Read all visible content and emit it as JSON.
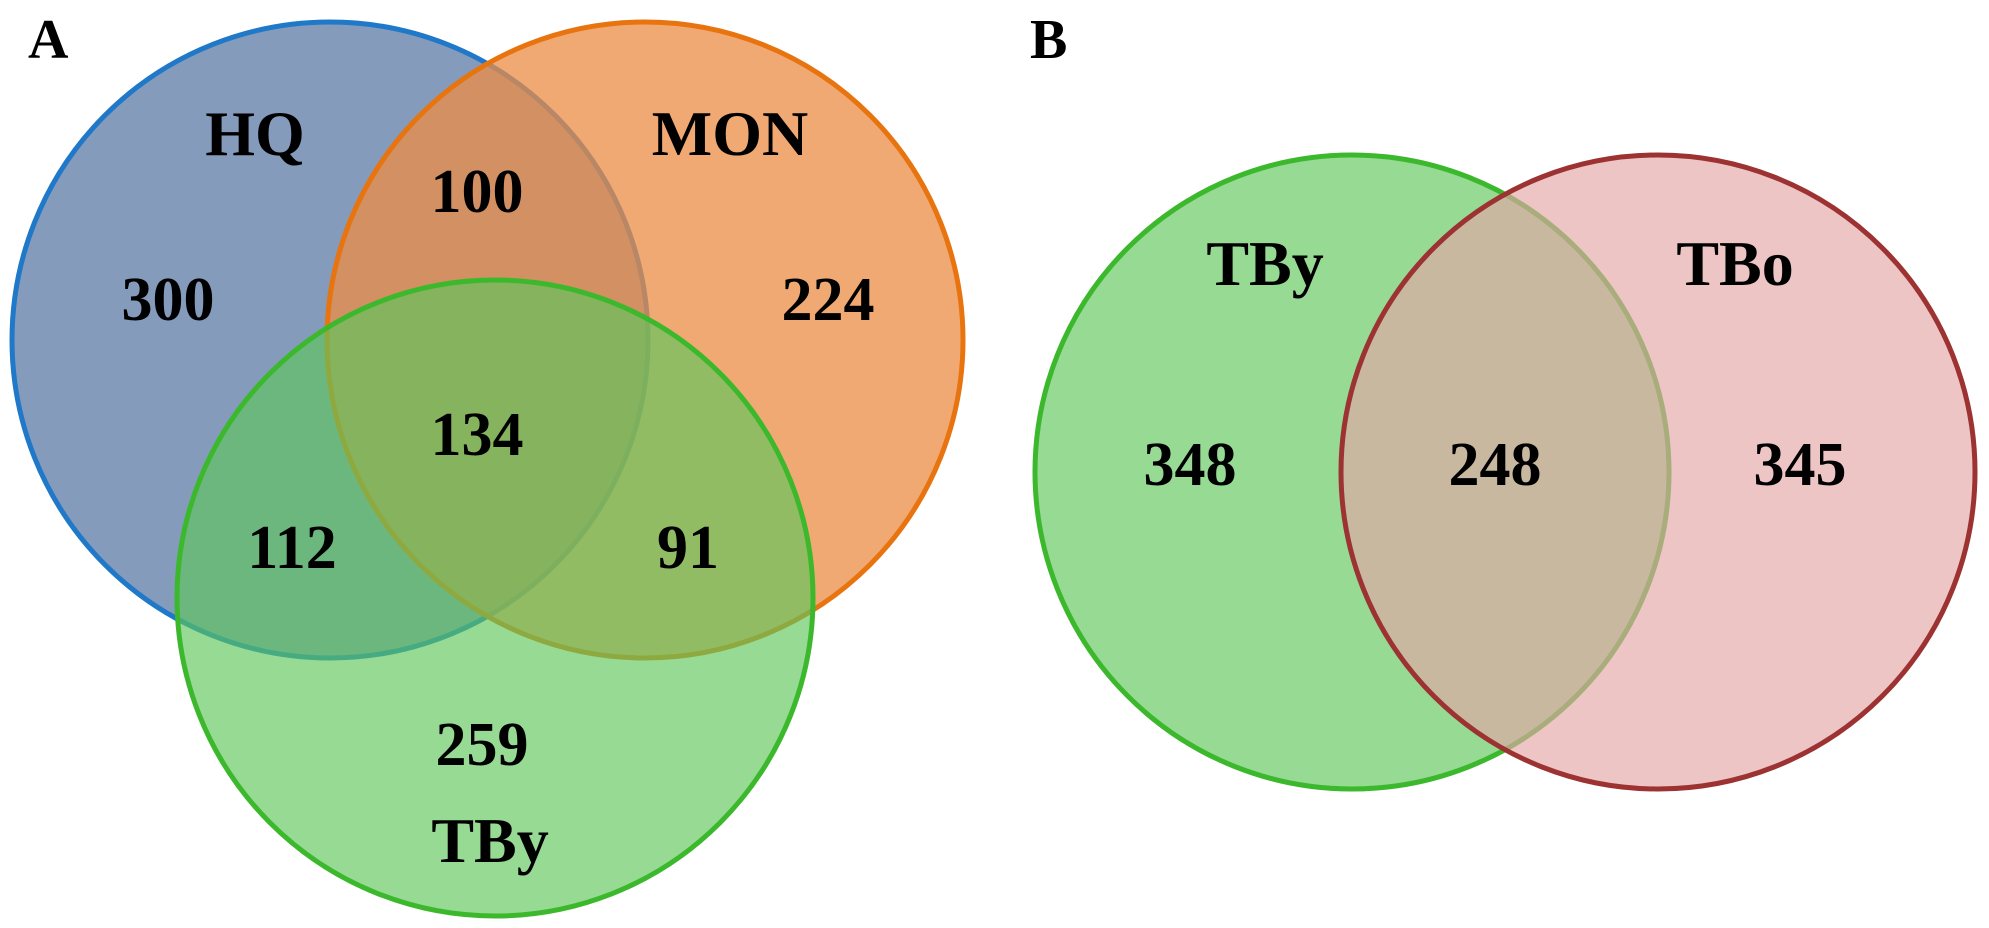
{
  "colors": {
    "hq_fill": "#5b7aa6",
    "hq_stroke": "#1f78c8",
    "mon_fill": "#ec8c45",
    "mon_stroke": "#e8740f",
    "tby_fill": "#5ec65a",
    "tby_stroke": "#3cb82c",
    "tbo_fill": "#e4a6a6",
    "tbo_stroke": "#9c3232"
  },
  "panels": [
    {
      "label": "A",
      "sets": [
        {
          "name": "HQ"
        },
        {
          "name": "MON"
        },
        {
          "name": "TBy"
        }
      ],
      "regions": {
        "hq_only": "300",
        "mon_only": "224",
        "tby_only": "259",
        "hq_mon": "100",
        "hq_tby": "112",
        "mon_tby": "91",
        "all": "134"
      }
    },
    {
      "label": "B",
      "sets": [
        {
          "name": "TBy"
        },
        {
          "name": "TBo"
        }
      ],
      "regions": {
        "tby_only": "348",
        "both": "248",
        "tbo_only": "345"
      }
    }
  ]
}
